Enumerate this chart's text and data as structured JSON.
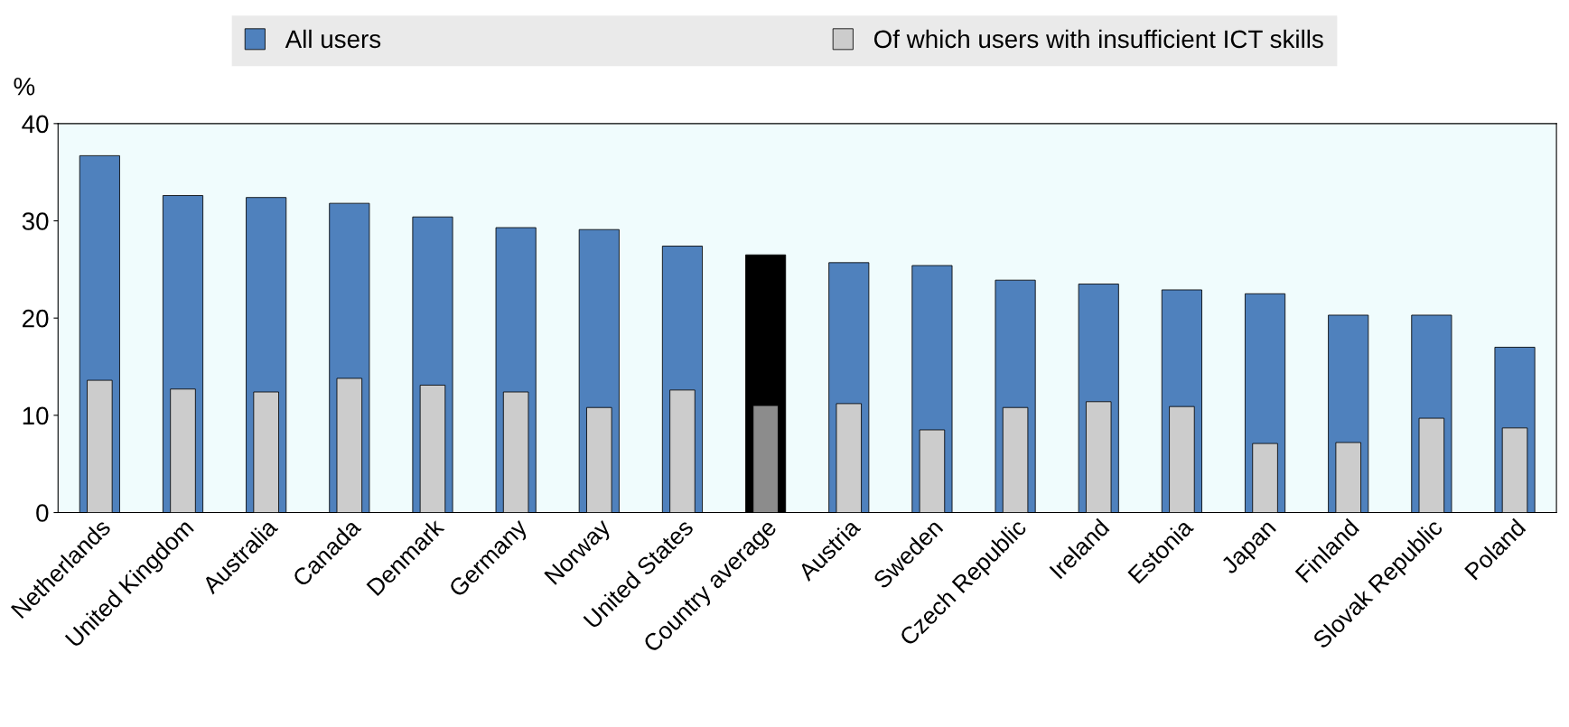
{
  "chart_data": {
    "type": "bar",
    "ylabel": "%",
    "categories": [
      "Netherlands",
      "United Kingdom",
      "Australia",
      "Canada",
      "Denmark",
      "Germany",
      "Norway",
      "United States",
      "Country average",
      "Austria",
      "Sweden",
      "Czech Republic",
      "Ireland",
      "Estonia",
      "Japan",
      "Finland",
      "Slovak Republic",
      "Poland"
    ],
    "series": [
      {
        "name": "All users",
        "color": "#4f81bd",
        "colors": [
          "#4f81bd",
          "#4f81bd",
          "#4f81bd",
          "#4f81bd",
          "#4f81bd",
          "#4f81bd",
          "#4f81bd",
          "#4f81bd",
          "#000000",
          "#4f81bd",
          "#4f81bd",
          "#4f81bd",
          "#4f81bd",
          "#4f81bd",
          "#4f81bd",
          "#4f81bd",
          "#4f81bd",
          "#4f81bd"
        ],
        "values": [
          36.7,
          32.6,
          32.4,
          31.8,
          30.4,
          29.3,
          29.1,
          27.4,
          26.5,
          25.7,
          25.4,
          23.9,
          23.5,
          22.9,
          22.5,
          20.3,
          20.3,
          17.0
        ]
      },
      {
        "name": "Of which users with insufficient ICT skills",
        "color": "#cccccc",
        "colors": [
          "#cccccc",
          "#cccccc",
          "#cccccc",
          "#cccccc",
          "#cccccc",
          "#cccccc",
          "#cccccc",
          "#cccccc",
          "#8c8c8c",
          "#cccccc",
          "#cccccc",
          "#cccccc",
          "#cccccc",
          "#cccccc",
          "#cccccc",
          "#cccccc",
          "#cccccc",
          "#cccccc"
        ],
        "values": [
          13.6,
          12.7,
          12.4,
          13.8,
          13.1,
          12.4,
          10.8,
          12.6,
          11.0,
          11.2,
          8.5,
          10.8,
          11.4,
          10.9,
          7.1,
          7.2,
          9.7,
          8.7
        ]
      }
    ],
    "ylim": [
      0,
      40
    ],
    "yticks": [
      0,
      10,
      20,
      30,
      40
    ],
    "grid": false,
    "legend": "top"
  }
}
